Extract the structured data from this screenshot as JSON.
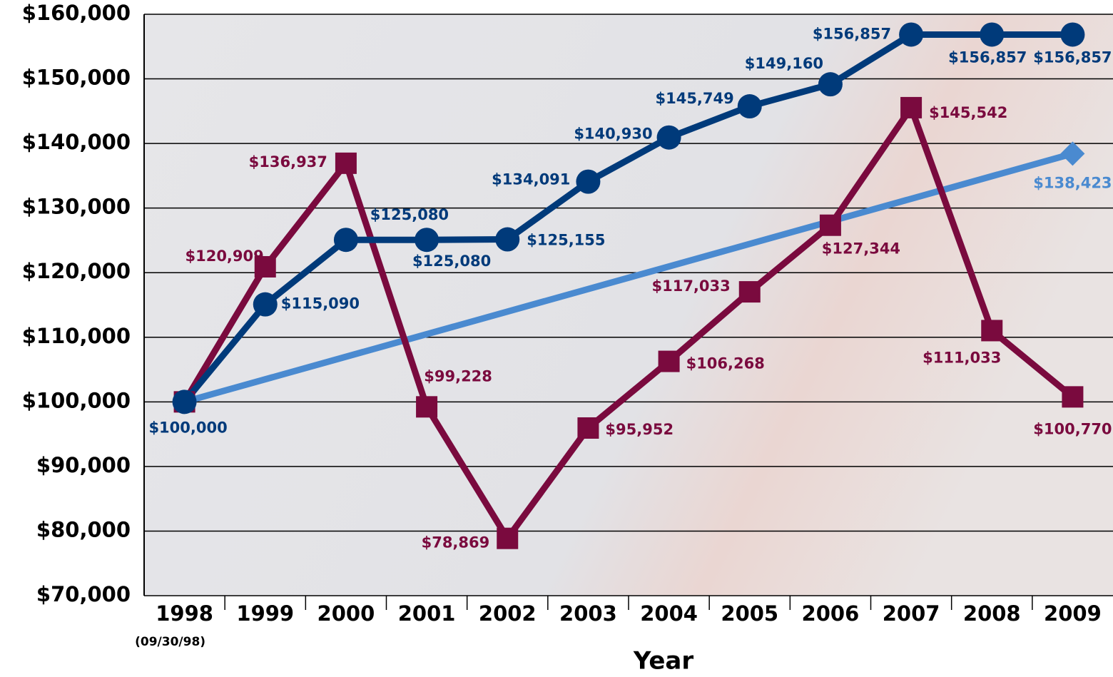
{
  "chart_data": {
    "type": "line",
    "x_label": "Year",
    "categories": [
      "1998",
      "1999",
      "2000",
      "2001",
      "2002",
      "2003",
      "2004",
      "2005",
      "2006",
      "2007",
      "2008",
      "2009"
    ],
    "category_notes": [
      "(09/30/98)",
      null,
      null,
      null,
      null,
      null,
      null,
      null,
      null,
      null,
      null,
      null
    ],
    "series": [
      {
        "color": "#003a7a",
        "marker": "circle",
        "values": [
          100000,
          115090,
          125080,
          125080,
          125155,
          134091,
          140930,
          145749,
          149160,
          156857,
          156857,
          156857
        ],
        "value_labels": [
          "$100,000",
          "$115,090",
          "$125,080",
          "$125,080",
          "$125,155",
          "$134,091",
          "$140,930",
          "$145,749",
          "$149,160",
          "$156,857",
          "$156,857",
          "$156,857"
        ]
      },
      {
        "color": "#7a0a3e",
        "marker": "square",
        "values": [
          100000,
          120909,
          136937,
          99228,
          78869,
          95952,
          106268,
          117033,
          127344,
          145542,
          111033,
          100770
        ],
        "value_labels": [
          null,
          "$120,909",
          "$136,937",
          "$99,228",
          "$78,869",
          "$95,952",
          "$106,268",
          "$117,033",
          "$127,344",
          "$145,542",
          "$111,033",
          "$100,770"
        ]
      },
      {
        "color": "#4a8ad0",
        "marker": "diamond",
        "connect_gaps": true,
        "values": [
          100000,
          null,
          null,
          null,
          null,
          null,
          null,
          null,
          null,
          null,
          null,
          138423
        ],
        "value_labels": [
          null,
          null,
          null,
          null,
          null,
          null,
          null,
          null,
          null,
          null,
          null,
          "$138,423"
        ]
      }
    ],
    "ylim": [
      70000,
      160000
    ],
    "yticks": [
      {
        "value": 70000,
        "label": "$70,000"
      },
      {
        "value": 80000,
        "label": "$80,000"
      },
      {
        "value": 90000,
        "label": "$90,000"
      },
      {
        "value": 100000,
        "label": "$100,000"
      },
      {
        "value": 110000,
        "label": "$110,000"
      },
      {
        "value": 120000,
        "label": "$120,000"
      },
      {
        "value": 130000,
        "label": "$130,000"
      },
      {
        "value": 140000,
        "label": "$140,000"
      },
      {
        "value": 150000,
        "label": "$150,000"
      },
      {
        "value": 160000,
        "label": "$160,000"
      }
    ],
    "grid": true
  }
}
